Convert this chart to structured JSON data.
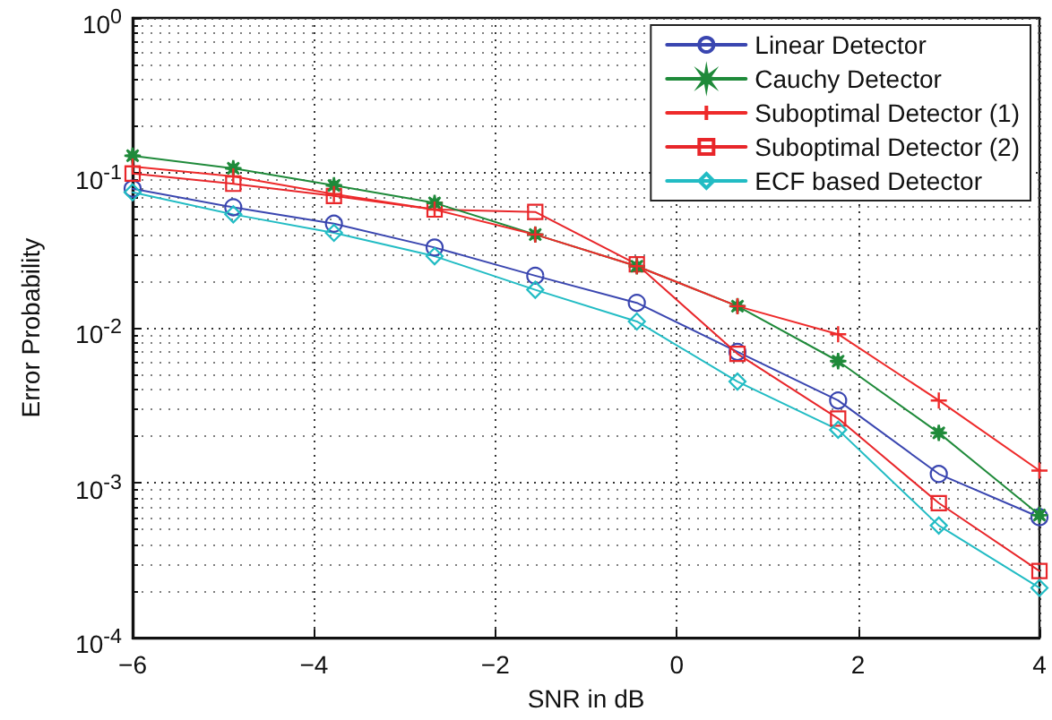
{
  "chart_data": {
    "type": "line",
    "xlabel": "SNR in dB",
    "ylabel": "Error Probability",
    "x": [
      -6,
      -4.89,
      -3.78,
      -2.67,
      -1.56,
      -0.44,
      0.67,
      1.78,
      2.89,
      4
    ],
    "series": [
      {
        "name": "Linear Detector",
        "color": "#3a46b0",
        "marker": "circle",
        "values": [
          0.079,
          0.06,
          0.047,
          0.033,
          0.0217,
          0.0145,
          0.007,
          0.0034,
          0.00114,
          0.0006
        ]
      },
      {
        "name": "Cauchy Detector",
        "color": "#1f8a3a",
        "marker": "star",
        "values": [
          0.129,
          0.107,
          0.083,
          0.064,
          0.04,
          0.025,
          0.0138,
          0.0061,
          0.0021,
          0.00062
        ]
      },
      {
        "name": "Suboptimal Detector (1)",
        "color": "#ee2a2a",
        "marker": "cross",
        "values": [
          0.11,
          0.095,
          0.073,
          0.058,
          0.04,
          0.025,
          0.0138,
          0.0091,
          0.0034,
          0.0012
        ]
      },
      {
        "name": "Suboptimal Detector (2)",
        "color": "#e8262a",
        "marker": "square",
        "values": [
          0.099,
          0.085,
          0.071,
          0.058,
          0.056,
          0.0257,
          0.0068,
          0.0026,
          0.00074,
          0.00027
        ]
      },
      {
        "name": "ECF based Detector",
        "color": "#22bcc4",
        "marker": "diamond",
        "values": [
          0.075,
          0.054,
          0.041,
          0.029,
          0.0176,
          0.011,
          0.0045,
          0.0022,
          0.00053,
          0.00021
        ]
      }
    ],
    "xlim": [
      -6,
      4
    ],
    "xticks": [
      -6,
      -4,
      -2,
      0,
      2,
      4
    ],
    "ylim": [
      0.0001,
      1
    ],
    "yticks": [
      {
        "value": 0.0001,
        "label": "10$^{-4}$"
      },
      {
        "value": 0.001,
        "label": "10$^{-3}$"
      },
      {
        "value": 0.01,
        "label": "10$^{-2}$"
      },
      {
        "value": 0.1,
        "label": "10$^{-1}$"
      },
      {
        "value": 1,
        "label": "10$^{0}$"
      }
    ],
    "log": "y",
    "grid": true,
    "legend": "top right",
    "line_style": "solid"
  }
}
